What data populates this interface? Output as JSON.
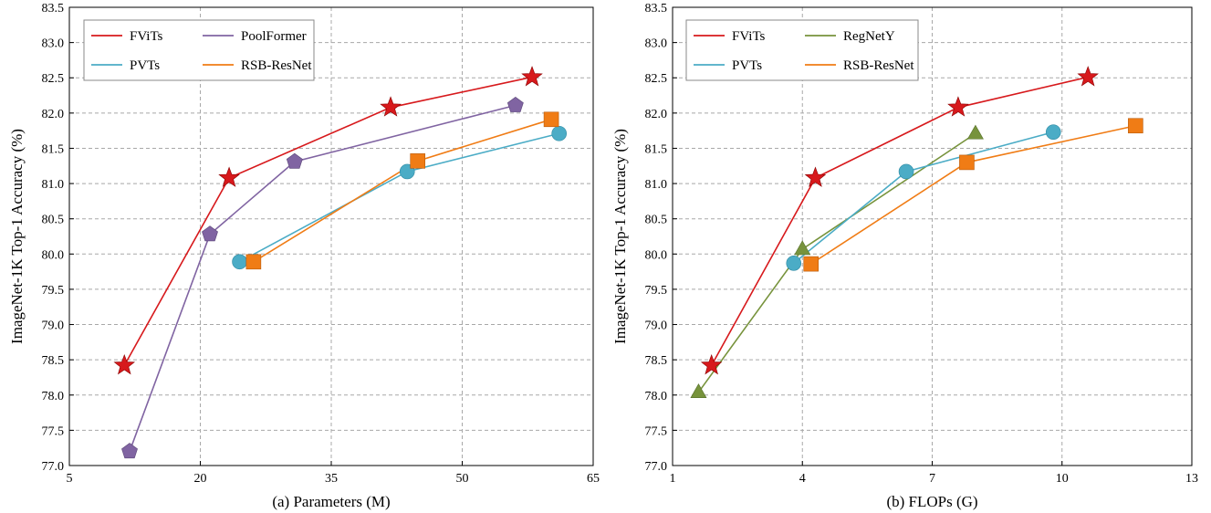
{
  "chart_data": [
    {
      "type": "line",
      "xlabel": "(a) Parameters (M)",
      "ylabel": "ImageNet-1K Top-1 Accuracy (%)",
      "xlim": [
        5,
        65
      ],
      "ylim": [
        77.0,
        83.5
      ],
      "xticks": [
        5,
        20,
        35,
        50,
        65
      ],
      "yticks": [
        77.0,
        77.5,
        78.0,
        78.5,
        79.0,
        79.5,
        80.0,
        80.5,
        81.0,
        81.5,
        82.0,
        82.5,
        83.0,
        83.5
      ],
      "grid": true,
      "legend_position": "top-left",
      "legend_entries": [
        "FViTs",
        "PoolFormer",
        "PVTs",
        "RSB-ResNet"
      ],
      "series": [
        {
          "name": "FViTs",
          "color": "#d7191c",
          "marker": "star",
          "x": [
            11.3,
            23.3,
            41.8,
            58.0
          ],
          "y": [
            78.42,
            81.08,
            82.08,
            82.51
          ]
        },
        {
          "name": "PoolFormer",
          "color": "#8064a2",
          "marker": "pentagon",
          "x": [
            11.9,
            21.1,
            30.8,
            56.1
          ],
          "y": [
            77.2,
            80.28,
            81.31,
            82.11
          ]
        },
        {
          "name": "PVTs",
          "color": "#4bacc6",
          "marker": "circle",
          "x": [
            24.5,
            43.7,
            61.1
          ],
          "y": [
            79.89,
            81.17,
            81.71
          ]
        },
        {
          "name": "RSB-ResNet",
          "color": "#f07c15",
          "marker": "square",
          "x": [
            26.1,
            44.9,
            60.2
          ],
          "y": [
            79.89,
            81.32,
            81.91
          ]
        }
      ]
    },
    {
      "type": "line",
      "xlabel": "(b) FLOPs (G)",
      "ylabel": "ImageNet-1K Top-1 Accuracy (%)",
      "xlim": [
        1,
        13
      ],
      "ylim": [
        77.0,
        83.5
      ],
      "xticks": [
        1,
        4,
        7,
        10,
        13
      ],
      "yticks": [
        77.0,
        77.5,
        78.0,
        78.5,
        79.0,
        79.5,
        80.0,
        80.5,
        81.0,
        81.5,
        82.0,
        82.5,
        83.0,
        83.5
      ],
      "grid": true,
      "legend_position": "top-left",
      "legend_entries": [
        "FViTs",
        "RegNetY",
        "PVTs",
        "RSB-ResNet"
      ],
      "series": [
        {
          "name": "FViTs",
          "color": "#d7191c",
          "marker": "star",
          "x": [
            1.9,
            4.3,
            7.6,
            10.6
          ],
          "y": [
            78.42,
            81.08,
            82.08,
            82.51
          ]
        },
        {
          "name": "RegNetY",
          "color": "#77933c",
          "marker": "triangle",
          "x": [
            1.6,
            4.0,
            8.0
          ],
          "y": [
            78.04,
            80.07,
            81.71
          ]
        },
        {
          "name": "PVTs",
          "color": "#4bacc6",
          "marker": "circle",
          "x": [
            3.8,
            6.4,
            9.8
          ],
          "y": [
            79.87,
            81.17,
            81.73
          ]
        },
        {
          "name": "RSB-ResNet",
          "color": "#f07c15",
          "marker": "square",
          "x": [
            4.2,
            7.8,
            11.7
          ],
          "y": [
            79.86,
            81.3,
            81.82
          ]
        }
      ]
    }
  ]
}
